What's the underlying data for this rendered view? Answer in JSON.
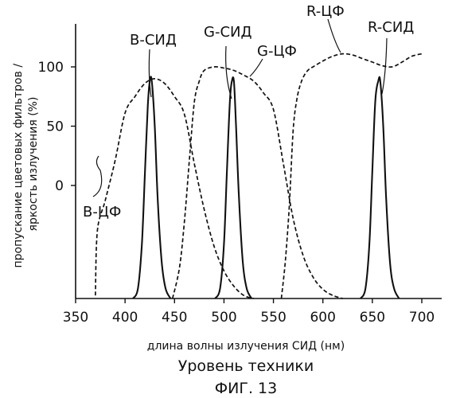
{
  "chart_data": {
    "type": "line",
    "title": "",
    "xlabel": "длина волны излучения СИД (нм)",
    "ylabel": "пропускание цветовых фильтров / яркость излучения (%)",
    "xlim": [
      350,
      700
    ],
    "ylim": [
      0,
      100
    ],
    "x_ticks": [
      "350",
      "400",
      "450",
      "500",
      "550",
      "600",
      "650",
      "700"
    ],
    "y_ticks": [
      "0",
      "50",
      "100"
    ],
    "series": [
      {
        "name": "B-ЦФ",
        "style": "dashed",
        "role": "filter",
        "x": [
          370,
          372,
          380,
          390,
          400,
          410,
          420,
          430,
          440,
          450,
          460,
          470,
          480,
          490,
          500,
          510,
          520,
          530
        ],
        "y": [
          1,
          22,
          32,
          45,
          61,
          75,
          86,
          90,
          86,
          75,
          60,
          44,
          29,
          17,
          9,
          4,
          1,
          0
        ]
      },
      {
        "name": "G-ЦФ",
        "style": "dashed",
        "role": "filter",
        "x": [
          448,
          455,
          460,
          465,
          470,
          475,
          480,
          490,
          500,
          510,
          520,
          530,
          540,
          550,
          560,
          570,
          580,
          590,
          600,
          610,
          620
        ],
        "y": [
          0,
          10,
          25,
          45,
          70,
          88,
          97,
          100,
          99,
          97,
          93,
          88,
          78,
          64,
          44,
          26,
          14,
          7,
          3,
          1,
          0
        ]
      },
      {
        "name": "R-ЦФ",
        "style": "dashed",
        "role": "filter",
        "x": [
          558,
          562,
          566,
          570,
          574,
          578,
          582,
          586,
          590,
          600,
          610,
          620,
          630,
          640,
          650,
          660,
          670,
          680,
          690,
          700
        ],
        "y": [
          0,
          12,
          30,
          55,
          74,
          87,
          94,
          98,
          100,
          105,
          109,
          111,
          110,
          107,
          104,
          101,
          100,
          104,
          109,
          111
        ]
      },
      {
        "name": "B-СИД",
        "style": "solid",
        "role": "led",
        "x": [
          408,
          413,
          417,
          420,
          423,
          425,
          427,
          430,
          433,
          437,
          441,
          446
        ],
        "y": [
          0,
          4,
          22,
          50,
          78,
          88,
          88,
          70,
          40,
          15,
          4,
          0
        ]
      },
      {
        "name": "G-СИД",
        "style": "solid",
        "role": "led",
        "x": [
          491,
          496,
          500,
          503,
          506,
          508,
          510,
          512,
          515,
          519,
          523,
          528
        ],
        "y": [
          0,
          4,
          22,
          52,
          80,
          88,
          88,
          72,
          42,
          15,
          4,
          0
        ]
      },
      {
        "name": "R-СИД",
        "style": "solid",
        "role": "led",
        "x": [
          638,
          643,
          647,
          650,
          653,
          656,
          658,
          661,
          664,
          668,
          672,
          677
        ],
        "y": [
          0,
          4,
          22,
          52,
          80,
          88,
          88,
          70,
          40,
          14,
          4,
          0
        ]
      }
    ]
  },
  "labels": {
    "b_cf": "B-ЦФ",
    "b_led": "B-СИД",
    "g_led": "G-СИД",
    "g_cf": "G-ЦФ",
    "r_cf": "R-ЦФ",
    "r_led": "R-СИД"
  },
  "caption": {
    "subtitle": "Уровень техники",
    "figure": "ФИГ. 13"
  },
  "colors": {
    "ink": "#111111"
  }
}
